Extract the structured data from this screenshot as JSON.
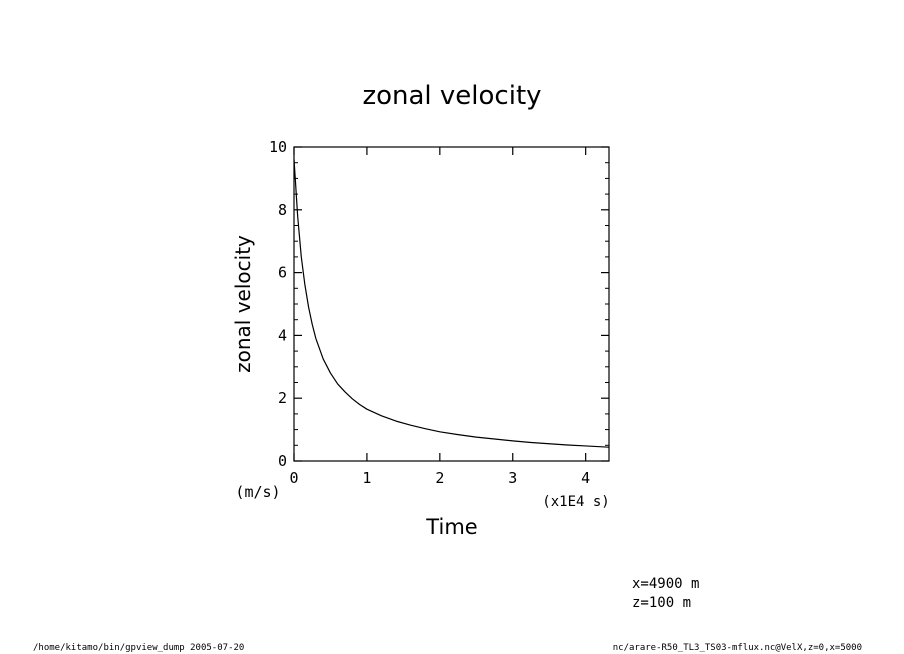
{
  "chart_data": {
    "type": "line",
    "title": "zonal velocity",
    "xlabel": "Time",
    "ylabel": "zonal velocity",
    "x_unit": "(x1E4 s)",
    "y_unit": "(m/s)",
    "xlim": [
      0,
      4.32
    ],
    "ylim": [
      0,
      10
    ],
    "x_ticks": [
      0,
      1,
      2,
      3,
      4
    ],
    "x_tick_labels": [
      "0",
      "1",
      "2",
      "3",
      "4"
    ],
    "y_ticks": [
      0,
      2,
      4,
      6,
      8,
      10
    ],
    "y_tick_labels": [
      "0",
      "2",
      "4",
      "6",
      "8",
      "10"
    ],
    "grid": false,
    "series": [
      {
        "x": [
          0.0,
          0.02,
          0.05,
          0.1,
          0.15,
          0.2,
          0.25,
          0.3,
          0.4,
          0.5,
          0.6,
          0.7,
          0.8,
          0.9,
          1.0,
          1.2,
          1.4,
          1.6,
          1.8,
          2.0,
          2.25,
          2.5,
          2.75,
          3.0,
          3.25,
          3.5,
          3.75,
          4.0,
          4.32
        ],
        "y": [
          9.6,
          8.9,
          7.8,
          6.5,
          5.6,
          4.9,
          4.35,
          3.9,
          3.25,
          2.8,
          2.45,
          2.2,
          1.98,
          1.8,
          1.65,
          1.44,
          1.27,
          1.14,
          1.03,
          0.93,
          0.84,
          0.76,
          0.7,
          0.64,
          0.59,
          0.55,
          0.51,
          0.48,
          0.44
        ],
        "color": "#000000"
      }
    ]
  },
  "annotations": {
    "position_x": "x=4900  m",
    "position_z": "z=100  m"
  },
  "footer": {
    "left": "/home/kitamo/bin/gpview_dump  2005-07-20",
    "right": "nc/arare-R50_TL3_TS03-mflux.nc@VelX,z=0,x=5000"
  }
}
